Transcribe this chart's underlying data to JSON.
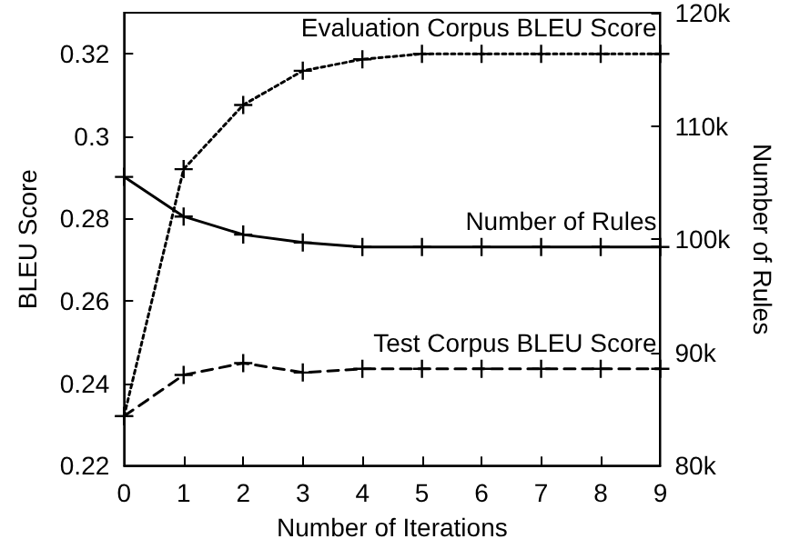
{
  "chart_data": {
    "type": "line",
    "xlabel": "Number of Iterations",
    "ylabel": "BLEU Score",
    "y2label": "Number of Rules",
    "x": [
      0,
      1,
      2,
      3,
      4,
      5,
      6,
      7,
      8,
      9
    ],
    "xlim": [
      0,
      9
    ],
    "xticks": [
      0,
      1,
      2,
      3,
      4,
      5,
      6,
      7,
      8,
      9
    ],
    "ylim": [
      0.22,
      0.33
    ],
    "yticks": [
      0.22,
      0.24,
      0.26,
      0.28,
      0.3,
      0.32
    ],
    "y2lim": [
      80000,
      120000
    ],
    "y2ticks": [
      {
        "value": 80000,
        "label": "80k"
      },
      {
        "value": 90000,
        "label": "90k"
      },
      {
        "value": 100000,
        "label": "100k"
      },
      {
        "value": 110000,
        "label": "110k"
      },
      {
        "value": 120000,
        "label": "120k"
      }
    ],
    "grid": false,
    "legend": false,
    "series": [
      {
        "name": "Evaluation Corpus BLEU Score",
        "color": "#000000",
        "marker": "cross",
        "line_style": "dotted",
        "values": [
          0.232,
          0.292,
          0.3076,
          0.3159,
          0.3187,
          0.32,
          0.32,
          0.32,
          0.32,
          0.32
        ]
      },
      {
        "name": "Number of Rules",
        "color": "#000000",
        "marker": "cross",
        "line_style": "solid",
        "axis": "y2",
        "values": [
          105500,
          102000,
          100400,
          99700,
          99300,
          99300,
          99300,
          99300,
          99300,
          99300
        ]
      },
      {
        "name": "Test Corpus BLEU Score",
        "color": "#000000",
        "marker": "cross",
        "line_style": "dashed",
        "values": [
          0.232,
          0.242,
          0.2449,
          0.2426,
          0.2435,
          0.2435,
          0.2435,
          0.2435,
          0.2435,
          0.2435
        ]
      }
    ]
  }
}
